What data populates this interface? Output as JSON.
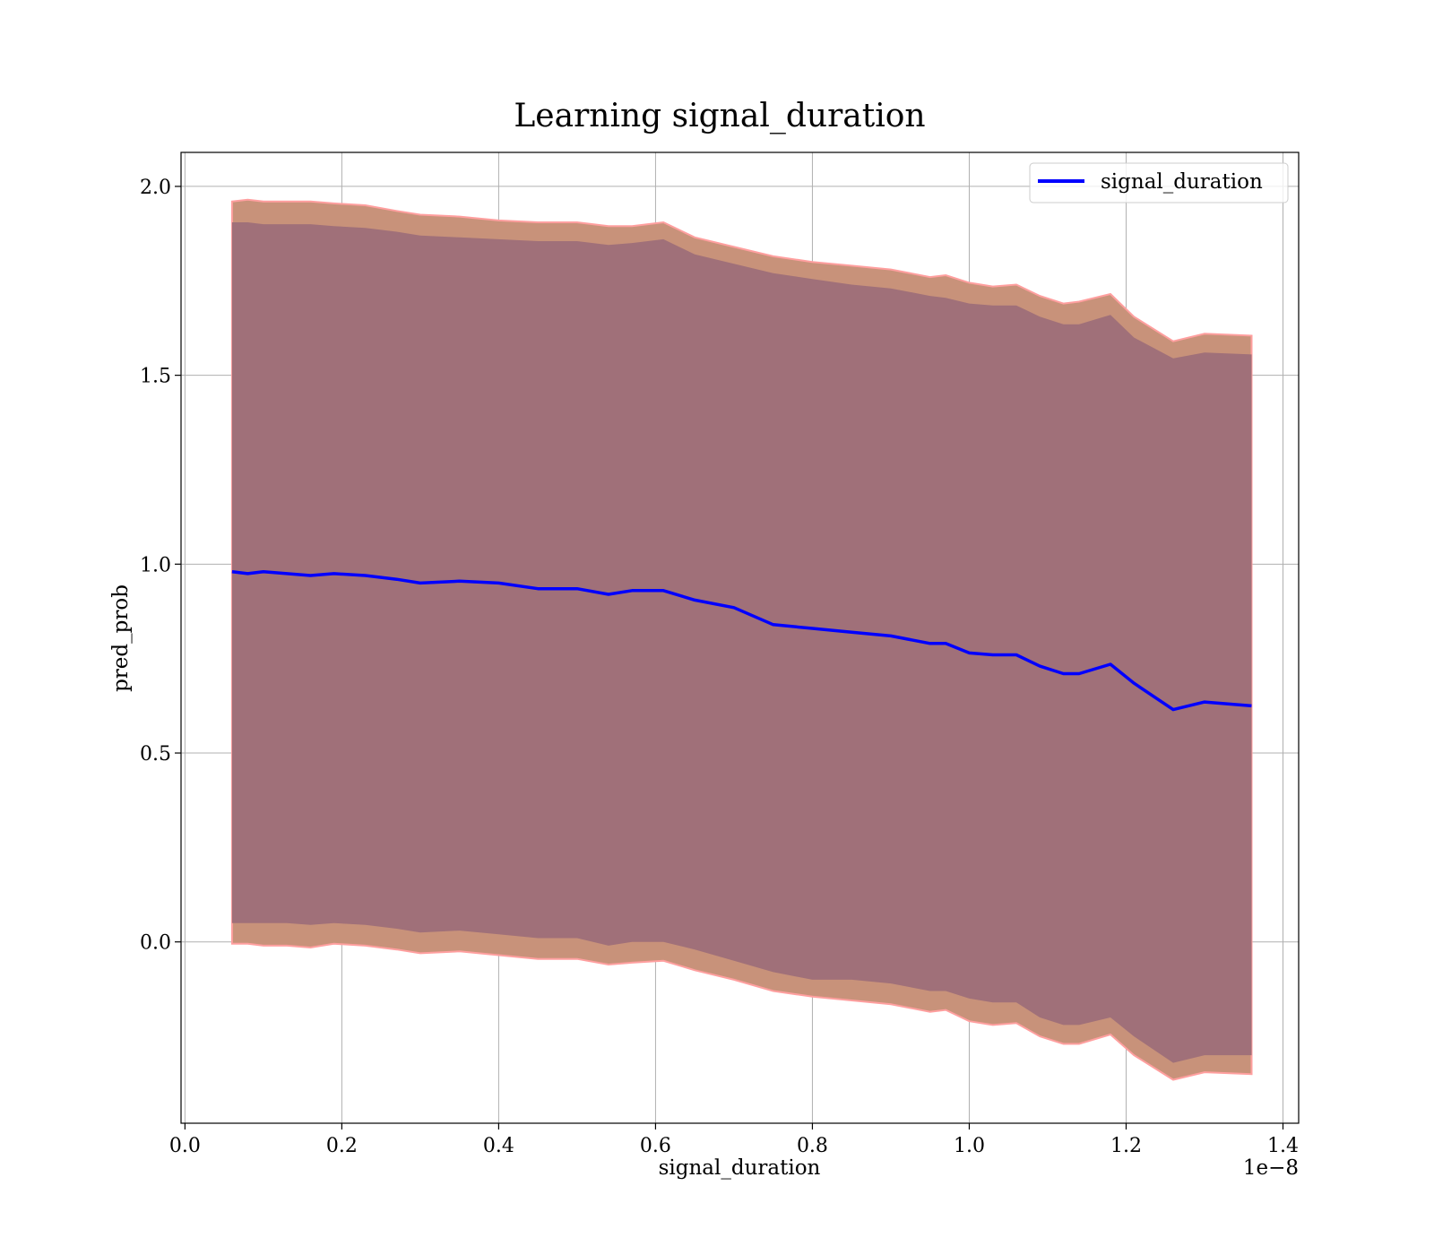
{
  "chart_data": {
    "type": "line",
    "title": "Learning signal_duration",
    "xlabel": "signal_duration",
    "ylabel": "pred_prob",
    "x_offset_text": "1e−8",
    "xlim": [
      -0.005,
      1.42
    ],
    "ylim": [
      -0.48,
      2.09
    ],
    "x_ticks": [
      0.0,
      0.2,
      0.4,
      0.6,
      0.8,
      1.0,
      1.2,
      1.4
    ],
    "x_tick_labels": [
      "0.0",
      "0.2",
      "0.4",
      "0.6",
      "0.8",
      "1.0",
      "1.2",
      "1.4"
    ],
    "y_ticks": [
      0.0,
      0.5,
      1.0,
      1.5,
      2.0
    ],
    "y_tick_labels": [
      "0.0",
      "0.5",
      "1.0",
      "1.5",
      "2.0"
    ],
    "grid": true,
    "legend_position": "top-right",
    "colors": {
      "line": "#0000ff",
      "band_outer_fill": "#c8927a",
      "band_outer_edge": "#ff9f9f",
      "band_inner_fill": "#a07079"
    },
    "x": [
      0.06,
      0.08,
      0.1,
      0.13,
      0.16,
      0.19,
      0.23,
      0.27,
      0.3,
      0.35,
      0.4,
      0.45,
      0.5,
      0.54,
      0.57,
      0.61,
      0.65,
      0.7,
      0.75,
      0.8,
      0.85,
      0.9,
      0.95,
      0.97,
      1.0,
      1.03,
      1.06,
      1.09,
      1.12,
      1.14,
      1.18,
      1.21,
      1.26,
      1.3,
      1.36
    ],
    "series": [
      {
        "name": "signal_duration",
        "values": [
          0.98,
          0.975,
          0.98,
          0.975,
          0.97,
          0.975,
          0.97,
          0.96,
          0.95,
          0.955,
          0.95,
          0.935,
          0.935,
          0.92,
          0.93,
          0.93,
          0.905,
          0.885,
          0.84,
          0.83,
          0.82,
          0.81,
          0.79,
          0.79,
          0.765,
          0.76,
          0.76,
          0.73,
          0.71,
          0.71,
          0.735,
          0.685,
          0.615,
          0.635,
          0.625
        ],
        "band_upper_outer": [
          1.96,
          1.965,
          1.96,
          1.96,
          1.96,
          1.955,
          1.95,
          1.935,
          1.925,
          1.92,
          1.91,
          1.905,
          1.905,
          1.895,
          1.895,
          1.905,
          1.865,
          1.84,
          1.815,
          1.8,
          1.79,
          1.78,
          1.76,
          1.765,
          1.745,
          1.735,
          1.74,
          1.71,
          1.69,
          1.695,
          1.715,
          1.655,
          1.59,
          1.61,
          1.605
        ],
        "band_upper_inner": [
          1.905,
          1.905,
          1.9,
          1.9,
          1.9,
          1.895,
          1.89,
          1.88,
          1.87,
          1.865,
          1.86,
          1.855,
          1.855,
          1.845,
          1.85,
          1.86,
          1.82,
          1.795,
          1.77,
          1.755,
          1.74,
          1.73,
          1.71,
          1.705,
          1.69,
          1.685,
          1.685,
          1.655,
          1.635,
          1.635,
          1.66,
          1.6,
          1.545,
          1.56,
          1.555
        ],
        "band_lower_inner": [
          0.05,
          0.05,
          0.05,
          0.05,
          0.045,
          0.05,
          0.045,
          0.035,
          0.025,
          0.03,
          0.02,
          0.01,
          0.01,
          -0.01,
          0.0,
          0.0,
          -0.02,
          -0.05,
          -0.08,
          -0.1,
          -0.1,
          -0.11,
          -0.13,
          -0.13,
          -0.15,
          -0.16,
          -0.16,
          -0.2,
          -0.22,
          -0.22,
          -0.2,
          -0.25,
          -0.32,
          -0.3,
          -0.3
        ],
        "band_lower_outer": [
          -0.005,
          -0.005,
          -0.01,
          -0.01,
          -0.015,
          -0.005,
          -0.01,
          -0.02,
          -0.03,
          -0.025,
          -0.035,
          -0.045,
          -0.045,
          -0.06,
          -0.055,
          -0.05,
          -0.075,
          -0.1,
          -0.13,
          -0.145,
          -0.155,
          -0.165,
          -0.185,
          -0.18,
          -0.21,
          -0.22,
          -0.215,
          -0.25,
          -0.27,
          -0.27,
          -0.245,
          -0.3,
          -0.365,
          -0.345,
          -0.35
        ]
      }
    ]
  }
}
